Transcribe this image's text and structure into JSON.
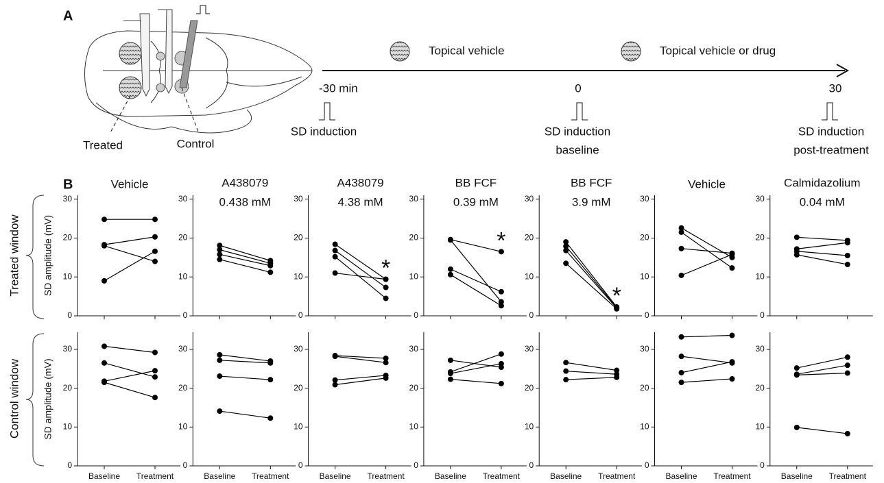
{
  "panel_a": {
    "label": "A",
    "window_labels": [
      "Treated",
      "Control"
    ],
    "applications": [
      "Topical vehicle",
      "Topical vehicle or drug"
    ],
    "times": [
      "-30 min",
      "0",
      "30"
    ],
    "inductions": [
      [
        "SD induction"
      ],
      [
        "SD induction",
        "baseline"
      ],
      [
        "SD induction",
        "post-treatment"
      ]
    ]
  },
  "panel_b": {
    "label": "B",
    "rows": [
      "Treated window",
      "Control window"
    ]
  },
  "chart_data": [
    {
      "type": "line",
      "title": "Vehicle",
      "categories": [
        null,
        null
      ],
      "color": "#000",
      "ylim": [
        0,
        31
      ],
      "yticks": [
        0,
        10,
        20,
        30
      ],
      "ylabel": "SD amplitude (mV)",
      "series": [
        {
          "values": [
            24.8,
            24.8
          ]
        },
        {
          "values": [
            18.3,
            20.3
          ]
        },
        {
          "values": [
            18.0,
            14.0
          ]
        },
        {
          "values": [
            9.0,
            16.6
          ]
        }
      ]
    },
    {
      "type": "line",
      "title": "A438079",
      "subtitle": "0.438 mM",
      "categories": [
        null,
        null
      ],
      "color": "#000",
      "ylim": [
        0,
        31
      ],
      "yticks": [
        0,
        10,
        20,
        30
      ],
      "series": [
        {
          "values": [
            18.1,
            14.2
          ]
        },
        {
          "values": [
            17.0,
            13.5
          ]
        },
        {
          "values": [
            15.8,
            12.9
          ]
        },
        {
          "values": [
            14.5,
            11.2
          ]
        }
      ]
    },
    {
      "type": "line",
      "title": "A438079",
      "subtitle": "4.38 mM",
      "categories": [
        null,
        null
      ],
      "color": "#000",
      "ylim": [
        0,
        31
      ],
      "yticks": [
        0,
        10,
        20,
        30
      ],
      "annotation": "*",
      "series": [
        {
          "values": [
            18.4,
            9.4
          ]
        },
        {
          "values": [
            16.8,
            7.3
          ]
        },
        {
          "values": [
            15.2,
            4.5
          ]
        },
        {
          "values": [
            11.0,
            9.4
          ]
        }
      ]
    },
    {
      "type": "line",
      "title": "BB FCF",
      "subtitle": "0.39 mM",
      "categories": [
        null,
        null
      ],
      "color": "#000",
      "ylim": [
        0,
        31
      ],
      "yticks": [
        0,
        10,
        20,
        30
      ],
      "annotation": "*",
      "series": [
        {
          "values": [
            19.6,
            16.5
          ]
        },
        {
          "values": [
            19.5,
            3.6
          ]
        },
        {
          "values": [
            12.0,
            6.2
          ]
        },
        {
          "values": [
            10.6,
            2.6
          ]
        }
      ]
    },
    {
      "type": "line",
      "title": "BB FCF",
      "subtitle": "3.9 mM",
      "categories": [
        null,
        null
      ],
      "color": "#000",
      "ylim": [
        0,
        31
      ],
      "yticks": [
        0,
        10,
        20,
        30
      ],
      "annotation": "*",
      "series": [
        {
          "values": [
            19.0,
            2.3
          ]
        },
        {
          "values": [
            17.9,
            2.1
          ]
        },
        {
          "values": [
            16.8,
            2.0
          ]
        },
        {
          "values": [
            13.5,
            1.8
          ]
        }
      ]
    },
    {
      "type": "line",
      "title": "Vehicle",
      "categories": [
        null,
        null
      ],
      "color": "#000",
      "ylim": [
        0,
        31
      ],
      "yticks": [
        0,
        10,
        20,
        30
      ],
      "series": [
        {
          "values": [
            22.6,
            15.0
          ]
        },
        {
          "values": [
            21.5,
            12.3
          ]
        },
        {
          "values": [
            17.3,
            16.1
          ]
        },
        {
          "values": [
            10.4,
            15.8
          ]
        }
      ]
    },
    {
      "type": "line",
      "title": "Calmidazolium",
      "subtitle": "0.04 mM",
      "categories": [
        null,
        null
      ],
      "color": "#000",
      "ylim": [
        0,
        31
      ],
      "yticks": [
        0,
        10,
        20,
        30
      ],
      "series": [
        {
          "values": [
            20.2,
            19.4
          ]
        },
        {
          "values": [
            17.2,
            18.8
          ]
        },
        {
          "values": [
            16.6,
            15.5
          ]
        },
        {
          "values": [
            15.7,
            13.2
          ]
        }
      ]
    },
    {
      "type": "line",
      "categories": [
        "Baseline",
        "Treatment"
      ],
      "color": "#000",
      "ylim": [
        0,
        34.4
      ],
      "yticks": [
        0,
        10,
        20,
        30
      ],
      "ylabel": "SD amplitude (mV)",
      "series": [
        {
          "values": [
            30.8,
            29.2
          ]
        },
        {
          "values": [
            26.5,
            22.9
          ]
        },
        {
          "values": [
            21.8,
            24.5
          ]
        },
        {
          "values": [
            21.5,
            17.6
          ]
        }
      ]
    },
    {
      "type": "line",
      "categories": [
        "Baseline",
        "Treatment"
      ],
      "color": "#000",
      "ylim": [
        0,
        34.4
      ],
      "yticks": [
        0,
        10,
        20,
        30
      ],
      "series": [
        {
          "values": [
            28.6,
            27.0
          ]
        },
        {
          "values": [
            27.2,
            26.5
          ]
        },
        {
          "values": [
            23.1,
            22.2
          ]
        },
        {
          "values": [
            14.1,
            12.3
          ]
        }
      ]
    },
    {
      "type": "line",
      "categories": [
        "Baseline",
        "Treatment"
      ],
      "color": "#000",
      "ylim": [
        0,
        34.4
      ],
      "yticks": [
        0,
        10,
        20,
        30
      ],
      "series": [
        {
          "values": [
            28.4,
            27.7
          ]
        },
        {
          "values": [
            28.2,
            26.6
          ]
        },
        {
          "values": [
            22.1,
            23.3
          ]
        },
        {
          "values": [
            20.9,
            22.6
          ]
        }
      ]
    },
    {
      "type": "line",
      "categories": [
        "Baseline",
        "Treatment"
      ],
      "color": "#000",
      "ylim": [
        0,
        34.4
      ],
      "yticks": [
        0,
        10,
        20,
        30
      ],
      "series": [
        {
          "values": [
            27.2,
            25.4
          ]
        },
        {
          "values": [
            24.2,
            28.8
          ]
        },
        {
          "values": [
            23.8,
            26.3
          ]
        },
        {
          "values": [
            22.3,
            21.2
          ]
        }
      ]
    },
    {
      "type": "line",
      "categories": [
        "Baseline",
        "Treatment"
      ],
      "color": "#000",
      "ylim": [
        0,
        34.4
      ],
      "yticks": [
        0,
        10,
        20,
        30
      ],
      "series": [
        {
          "values": [
            26.6,
            24.6
          ]
        },
        {
          "values": [
            24.4,
            23.6
          ]
        },
        {
          "values": [
            22.2,
            22.8
          ]
        }
      ]
    },
    {
      "type": "line",
      "categories": [
        "Baseline",
        "Treatment"
      ],
      "color": "#000",
      "ylim": [
        0,
        34.4
      ],
      "yticks": [
        0,
        10,
        20,
        30
      ],
      "series": [
        {
          "values": [
            33.2,
            33.6
          ]
        },
        {
          "values": [
            28.2,
            26.5
          ]
        },
        {
          "values": [
            24.0,
            26.8
          ]
        },
        {
          "values": [
            21.5,
            22.4
          ]
        }
      ]
    },
    {
      "type": "line",
      "categories": [
        "Baseline",
        "Treatment"
      ],
      "color": "#000",
      "ylim": [
        0,
        34.4
      ],
      "yticks": [
        0,
        10,
        20,
        30
      ],
      "series": [
        {
          "values": [
            25.2,
            28.0
          ]
        },
        {
          "values": [
            23.6,
            25.9
          ]
        },
        {
          "values": [
            23.4,
            23.9
          ]
        },
        {
          "values": [
            9.9,
            8.3
          ]
        }
      ]
    }
  ]
}
